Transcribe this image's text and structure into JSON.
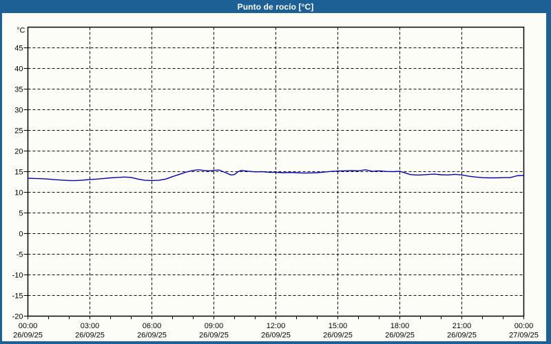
{
  "window": {
    "title": "Punto de rocío [°C]"
  },
  "colors": {
    "frame": "#1c6096",
    "panel": "#fcfdf7",
    "axis": "#000000",
    "grid": "#000000",
    "series": "#0000bb",
    "title_text": "#ffffff"
  },
  "chart_data": {
    "type": "line",
    "title": "Punto de rocío [°C]",
    "ylabel": "°C",
    "xlabel": "",
    "ylim": [
      -20,
      50
    ],
    "xlim_hours": [
      0,
      24
    ],
    "grid": "dashed",
    "legend": "none",
    "y_ticks": [
      45,
      40,
      35,
      30,
      25,
      20,
      15,
      10,
      5,
      0,
      -5,
      -10,
      -15,
      -20
    ],
    "minor_x_tick_every_hours": 1,
    "x_ticks": [
      {
        "hour": 0,
        "time": "00:00",
        "date": "26/09/25"
      },
      {
        "hour": 3,
        "time": "03:00",
        "date": "26/09/25"
      },
      {
        "hour": 6,
        "time": "06:00",
        "date": "26/09/25"
      },
      {
        "hour": 9,
        "time": "09:00",
        "date": "26/09/25"
      },
      {
        "hour": 12,
        "time": "12:00",
        "date": "26/09/25"
      },
      {
        "hour": 15,
        "time": "15:00",
        "date": "26/09/25"
      },
      {
        "hour": 18,
        "time": "18:00",
        "date": "26/09/25"
      },
      {
        "hour": 21,
        "time": "21:00",
        "date": "26/09/25"
      },
      {
        "hour": 24,
        "time": "00:00",
        "date": "27/09/25"
      }
    ],
    "series": [
      {
        "name": "Punto de rocío",
        "unit": "°C",
        "color": "#0000bb",
        "points": [
          [
            0,
            13.4
          ],
          [
            0.33,
            13.35
          ],
          [
            0.67,
            13.3
          ],
          [
            1,
            13.2
          ],
          [
            1.33,
            13.05
          ],
          [
            1.67,
            12.95
          ],
          [
            2,
            12.85
          ],
          [
            2.33,
            12.85
          ],
          [
            2.67,
            12.95
          ],
          [
            3,
            13.1
          ],
          [
            3.33,
            13.2
          ],
          [
            3.67,
            13.35
          ],
          [
            4,
            13.5
          ],
          [
            4.33,
            13.6
          ],
          [
            4.67,
            13.7
          ],
          [
            5,
            13.6
          ],
          [
            5.33,
            13.2
          ],
          [
            5.67,
            12.9
          ],
          [
            6,
            12.85
          ],
          [
            6.33,
            12.9
          ],
          [
            6.67,
            13.2
          ],
          [
            7,
            13.8
          ],
          [
            7.33,
            14.35
          ],
          [
            7.67,
            14.9
          ],
          [
            8,
            15.3
          ],
          [
            8.25,
            15.45
          ],
          [
            8.5,
            15.3
          ],
          [
            8.75,
            15.2
          ],
          [
            9,
            15.3
          ],
          [
            9.25,
            15.4
          ],
          [
            9.5,
            14.9
          ],
          [
            9.83,
            14.2
          ],
          [
            10,
            14.3
          ],
          [
            10.17,
            15.0
          ],
          [
            10.33,
            15.3
          ],
          [
            10.67,
            15.1
          ],
          [
            11,
            14.95
          ],
          [
            11.33,
            15.0
          ],
          [
            11.67,
            14.85
          ],
          [
            12,
            14.85
          ],
          [
            12.33,
            14.75
          ],
          [
            12.67,
            14.8
          ],
          [
            13,
            14.75
          ],
          [
            13.33,
            14.65
          ],
          [
            13.67,
            14.7
          ],
          [
            14,
            14.75
          ],
          [
            14.33,
            14.9
          ],
          [
            14.67,
            15.05
          ],
          [
            15,
            15.15
          ],
          [
            15.33,
            15.2
          ],
          [
            15.67,
            15.25
          ],
          [
            16,
            15.2
          ],
          [
            16.33,
            15.45
          ],
          [
            16.67,
            15.1
          ],
          [
            17,
            15.2
          ],
          [
            17.33,
            15.05
          ],
          [
            17.67,
            15.0
          ],
          [
            18,
            15.1
          ],
          [
            18.25,
            14.7
          ],
          [
            18.5,
            14.3
          ],
          [
            18.75,
            14.2
          ],
          [
            19,
            14.2
          ],
          [
            19.33,
            14.3
          ],
          [
            19.67,
            14.4
          ],
          [
            20,
            14.25
          ],
          [
            20.33,
            14.2
          ],
          [
            20.67,
            14.35
          ],
          [
            21,
            14.2
          ],
          [
            21.33,
            13.9
          ],
          [
            21.67,
            13.7
          ],
          [
            22,
            13.55
          ],
          [
            22.33,
            13.5
          ],
          [
            22.67,
            13.5
          ],
          [
            23,
            13.55
          ],
          [
            23.33,
            13.55
          ],
          [
            23.67,
            14.0
          ],
          [
            24,
            14.1
          ]
        ]
      }
    ]
  }
}
